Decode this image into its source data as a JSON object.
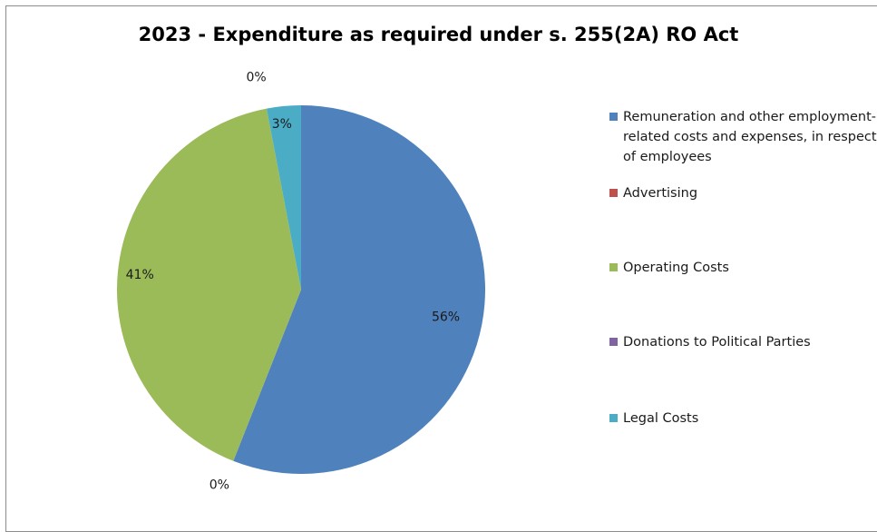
{
  "chart_data": {
    "type": "pie",
    "title": "2023 - Expenditure as required under s. 255(2A) RO Act",
    "categories": [
      "Remuneration and other employment-related costs and expenses, in respect of employees",
      "Advertising",
      "Operating Costs",
      "Donations to Political Parties",
      "Legal Costs"
    ],
    "values": [
      56,
      0,
      41,
      0,
      3
    ],
    "data_labels": [
      "56%",
      "0%",
      "41%",
      "0%",
      "3%"
    ],
    "colors": [
      "#4f81bd",
      "#c0504d",
      "#9bbb59",
      "#8064a2",
      "#4bacc6"
    ],
    "legend_placement": "right"
  }
}
